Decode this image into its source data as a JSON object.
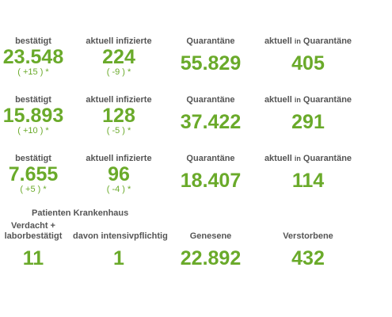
{
  "rows": [
    {
      "confirmed": {
        "label": "bestätigt",
        "value": "23.548",
        "change": "( +15 ) *"
      },
      "active": {
        "label": "aktuell infizierte",
        "value": "224",
        "change": "( -9 ) *"
      },
      "quarantine": {
        "label": "Quarantäne",
        "value": "55.829"
      },
      "current_quarantine": {
        "label_pre": "aktuell",
        "label_mid": "in",
        "label_post": "Quarantäne",
        "value": "405"
      }
    },
    {
      "confirmed": {
        "label": "bestätigt",
        "value": "15.893",
        "change": "( +10 ) *"
      },
      "active": {
        "label": "aktuell infizierte",
        "value": "128",
        "change": "( -5 ) *"
      },
      "quarantine": {
        "label": "Quarantäne",
        "value": "37.422"
      },
      "current_quarantine": {
        "label_pre": "aktuell",
        "label_mid": "in",
        "label_post": "Quarantäne",
        "value": "291"
      }
    },
    {
      "confirmed": {
        "label": "bestätigt",
        "value": "7.655",
        "change": "( +5 ) *"
      },
      "active": {
        "label": "aktuell infizierte",
        "value": "96",
        "change": "( -4 ) *"
      },
      "quarantine": {
        "label": "Quarantäne",
        "value": "18.407"
      },
      "current_quarantine": {
        "label_pre": "aktuell",
        "label_mid": "in",
        "label_post": "Quarantäne",
        "value": "114"
      }
    }
  ],
  "hospital": {
    "title": "Patienten Krankenhaus",
    "suspected": {
      "label_line1": "Verdacht +",
      "label_line2": "laborbestätigt",
      "value": "11"
    },
    "intensive": {
      "label": "davon intensivpflichtig",
      "value": "1"
    },
    "recovered": {
      "label": "Genesene",
      "value": "22.892"
    },
    "deceased": {
      "label": "Verstorbene",
      "value": "432"
    }
  }
}
